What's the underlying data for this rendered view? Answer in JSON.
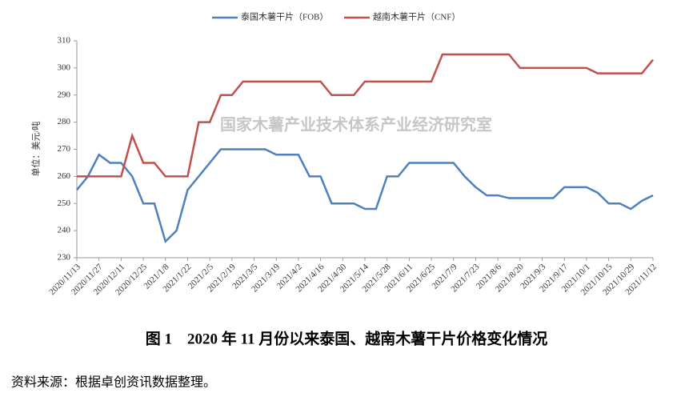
{
  "chart_data": {
    "type": "line",
    "title": "图 1　2020 年 11 月份以来泰国、越南木薯干片价格变化情况",
    "source": "资料来源：根据卓创资讯数据整理。",
    "watermark": "国家木薯产业技术体系产业经济研究室",
    "y_label": "单位：美元/吨",
    "categories": [
      "2020/11/13",
      null,
      "2020/11/27",
      null,
      "2020/12/11",
      null,
      "2020/12/25",
      null,
      "2021/1/8",
      null,
      "2021/1/22",
      null,
      "2021/2/5",
      null,
      "2021/2/19",
      null,
      "2021/3/5",
      null,
      "2021/3/19",
      null,
      "2021/4/2",
      null,
      "2021/4/16",
      null,
      "2021/4/30",
      null,
      "2021/5/14",
      null,
      "2021/5/28",
      null,
      "2021/6/11",
      null,
      "2021/6/25",
      null,
      "2021/7/9",
      null,
      "2021/7/23",
      null,
      "2021/8/6",
      null,
      "2021/8/20",
      null,
      "2021/9/3",
      null,
      "2021/9/17",
      null,
      "2021/10/1",
      null,
      "2021/10/15",
      null,
      "2021/10/29",
      null,
      "2021/11/12"
    ],
    "series": [
      {
        "name": "泰国木薯干片（FOB）",
        "color": "#4f81bd",
        "values": [
          255,
          260,
          268,
          265,
          265,
          260,
          250,
          250,
          236,
          240,
          255,
          260,
          265,
          270,
          270,
          270,
          270,
          270,
          268,
          268,
          268,
          260,
          260,
          250,
          250,
          250,
          248,
          248,
          260,
          260,
          265,
          265,
          265,
          265,
          265,
          260,
          256,
          253,
          253,
          252,
          252,
          252,
          252,
          252,
          256,
          256,
          256,
          254,
          250,
          250,
          248,
          251,
          253
        ]
      },
      {
        "name": "越南木薯干片（CNF）",
        "color": "#c0504d",
        "values": [
          260,
          260,
          260,
          260,
          260,
          275,
          265,
          265,
          260,
          260,
          260,
          280,
          280,
          290,
          290,
          295,
          295,
          295,
          295,
          295,
          295,
          295,
          295,
          290,
          290,
          290,
          295,
          295,
          295,
          295,
          295,
          295,
          295,
          305,
          305,
          305,
          305,
          305,
          305,
          305,
          300,
          300,
          300,
          300,
          300,
          300,
          300,
          298,
          298,
          298,
          298,
          298,
          303
        ]
      }
    ],
    "ylim": [
      230,
      310
    ],
    "yticks": [
      230,
      240,
      250,
      260,
      270,
      280,
      290,
      300,
      310
    ]
  }
}
